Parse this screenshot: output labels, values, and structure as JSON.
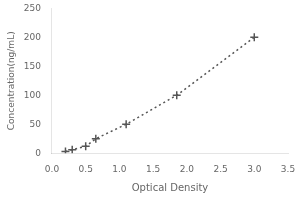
{
  "chart_data": {
    "type": "line",
    "x": [
      0.2,
      0.3,
      0.5,
      0.65,
      1.1,
      1.85,
      3.0
    ],
    "values": [
      3,
      6,
      12,
      25,
      50,
      100,
      200
    ],
    "xlabel": "Optical Density",
    "ylabel": "Concentration(ng/mL)",
    "xlim": [
      0,
      3.5
    ],
    "ylim": [
      0,
      250
    ],
    "xticks": [
      {
        "value": 0,
        "label": "0.0"
      },
      0.5,
      {
        "value": 1.0,
        "label": "1.0"
      },
      1.5,
      {
        "value": 2.0,
        "label": "2.0"
      },
      2.5,
      {
        "value": 3.0,
        "label": "3.0"
      },
      3.5
    ],
    "yticks": [
      0,
      50,
      100,
      150,
      200,
      250
    ],
    "color": "#555555",
    "marker": "+",
    "line_style": "dotted",
    "grid": false
  }
}
